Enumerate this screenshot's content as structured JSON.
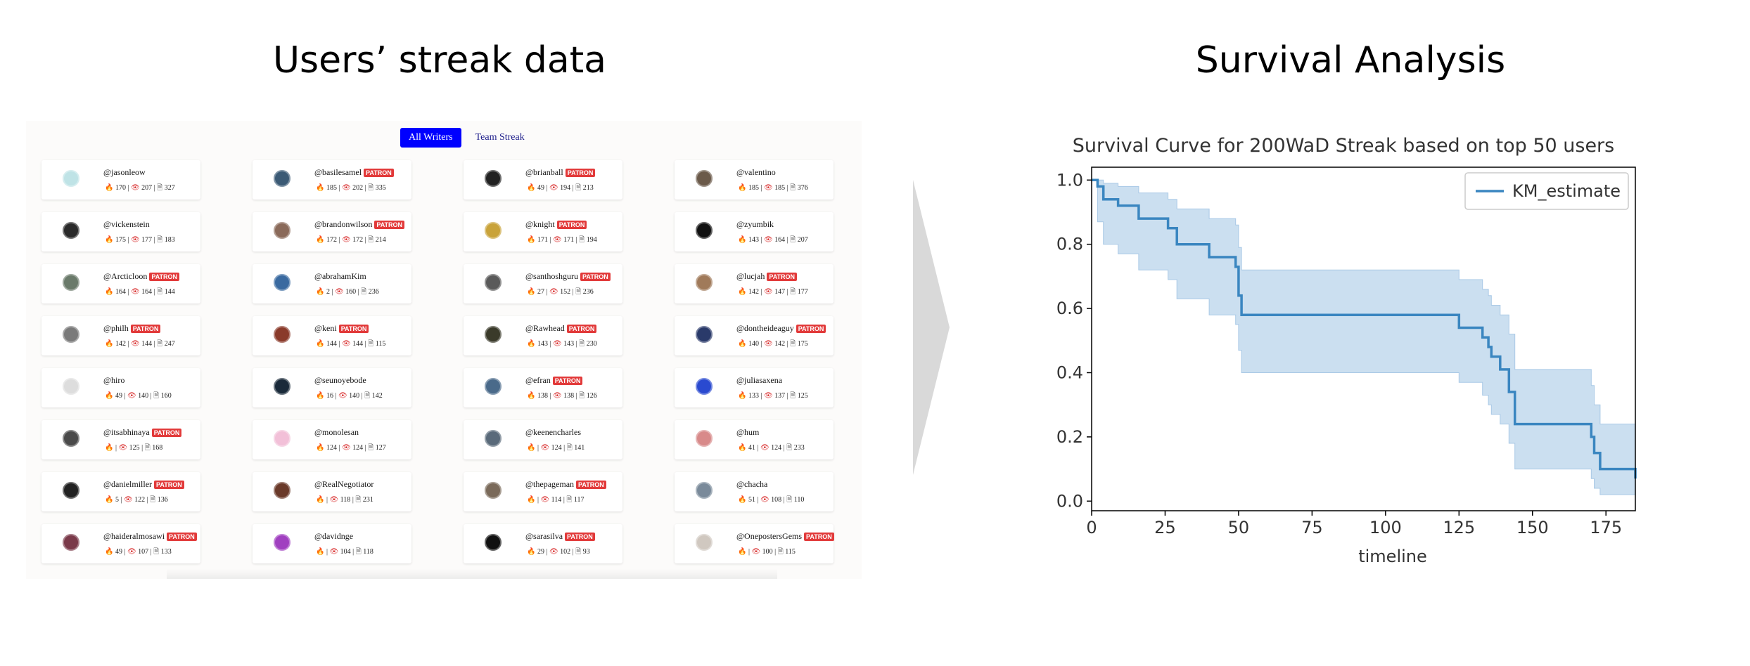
{
  "headings": {
    "left": "Users’ streak data",
    "right": "Survival Analysis"
  },
  "tabs": [
    {
      "label": "All Writers",
      "active": true
    },
    {
      "label": "Team Streak",
      "active": false
    }
  ],
  "users": [
    {
      "name": "@jasonleow",
      "patron": false,
      "streak": "170",
      "views": "207",
      "posts": "327",
      "avatar": "#bfe3e6"
    },
    {
      "name": "@basilesamel",
      "patron": true,
      "streak": "185",
      "views": "202",
      "posts": "335",
      "avatar": "#3b5a75"
    },
    {
      "name": "@brianball",
      "patron": true,
      "streak": "49",
      "views": "194",
      "posts": "213",
      "avatar": "#222222"
    },
    {
      "name": "@valentino",
      "patron": false,
      "streak": "185",
      "views": "185",
      "posts": "376",
      "avatar": "#6b5a4a"
    },
    {
      "name": "@vickenstein",
      "patron": false,
      "streak": "175",
      "views": "177",
      "posts": "183",
      "avatar": "#2a2a2a"
    },
    {
      "name": "@brandonwilson",
      "patron": true,
      "streak": "172",
      "views": "172",
      "posts": "214",
      "avatar": "#8a6a5a"
    },
    {
      "name": "@knight",
      "patron": true,
      "streak": "171",
      "views": "171",
      "posts": "194",
      "avatar": "#c9a33a"
    },
    {
      "name": "@zyumbik",
      "patron": false,
      "streak": "143",
      "views": "164",
      "posts": "207",
      "avatar": "#111111"
    },
    {
      "name": "@Arcticloon",
      "patron": true,
      "streak": "164",
      "views": "164",
      "posts": "144",
      "avatar": "#6a7a6a"
    },
    {
      "name": "@abrahamKim",
      "patron": false,
      "streak": "2",
      "views": "160",
      "posts": "236",
      "avatar": "#3a6aa0"
    },
    {
      "name": "@santhoshguru",
      "patron": true,
      "streak": "27",
      "views": "152",
      "posts": "236",
      "avatar": "#5a5a5a"
    },
    {
      "name": "@lucjah",
      "patron": true,
      "streak": "142",
      "views": "147",
      "posts": "177",
      "avatar": "#a07a5a"
    },
    {
      "name": "@philh",
      "patron": true,
      "streak": "142",
      "views": "144",
      "posts": "247",
      "avatar": "#7a7a7a"
    },
    {
      "name": "@keni",
      "patron": true,
      "streak": "144",
      "views": "144",
      "posts": "115",
      "avatar": "#8a3a2a"
    },
    {
      "name": "@Rawhead",
      "patron": true,
      "streak": "143",
      "views": "143",
      "posts": "230",
      "avatar": "#3a3a2a"
    },
    {
      "name": "@dontheideaguy",
      "patron": true,
      "streak": "140",
      "views": "142",
      "posts": "175",
      "avatar": "#2a3a6a"
    },
    {
      "name": "@hiro",
      "patron": false,
      "streak": "49",
      "views": "140",
      "posts": "160",
      "avatar": "#dddddd"
    },
    {
      "name": "@seunoyebode",
      "patron": false,
      "streak": "16",
      "views": "140",
      "posts": "142",
      "avatar": "#1a2a3a"
    },
    {
      "name": "@efran",
      "patron": true,
      "streak": "138",
      "views": "138",
      "posts": "126",
      "avatar": "#4a6a8a"
    },
    {
      "name": "@juliasaxena",
      "patron": false,
      "streak": "133",
      "views": "137",
      "posts": "125",
      "avatar": "#2a4ad0"
    },
    {
      "name": "@itsabhinaya",
      "patron": true,
      "streak": "",
      "views": "125",
      "posts": "168",
      "avatar": "#4a4a4a"
    },
    {
      "name": "@monolesan",
      "patron": false,
      "streak": "124",
      "views": "124",
      "posts": "127",
      "avatar": "#f2c0d8"
    },
    {
      "name": "@keenencharles",
      "patron": false,
      "streak": "",
      "views": "124",
      "posts": "141",
      "avatar": "#5a6a7a"
    },
    {
      "name": "@hum",
      "patron": false,
      "streak": "41",
      "views": "124",
      "posts": "233",
      "avatar": "#d88a8a"
    },
    {
      "name": "@danielmiller",
      "patron": true,
      "streak": "5",
      "views": "122",
      "posts": "136",
      "avatar": "#222222"
    },
    {
      "name": "@RealNegotiator",
      "patron": false,
      "streak": "",
      "views": "118",
      "posts": "231",
      "avatar": "#6a3a2a"
    },
    {
      "name": "@thepageman",
      "patron": true,
      "streak": "",
      "views": "114",
      "posts": "117",
      "avatar": "#7a6a5a"
    },
    {
      "name": "@chacha",
      "patron": false,
      "streak": "51",
      "views": "108",
      "posts": "110",
      "avatar": "#7a8a9a"
    },
    {
      "name": "@haideralmosawi",
      "patron": true,
      "streak": "49",
      "views": "107",
      "posts": "133",
      "avatar": "#7a3a4a"
    },
    {
      "name": "@davidnge",
      "patron": false,
      "streak": "",
      "views": "104",
      "posts": "118",
      "avatar": "#a040c0"
    },
    {
      "name": "@sarasilva",
      "patron": true,
      "streak": "29",
      "views": "102",
      "posts": "93",
      "avatar": "#111111"
    },
    {
      "name": "@OnepostersGems",
      "patron": true,
      "streak": "",
      "views": "100",
      "posts": "115",
      "avatar": "#d0c8c0"
    }
  ],
  "patron_label": "PATRON",
  "colors": {
    "curve": "#3a86c0",
    "band": "#a9c9e6",
    "active_tab": "#0000ff",
    "patron_badge": "#e23a3a"
  },
  "chart_data": {
    "type": "line",
    "title": "Survival Curve for 200WaD Streak based on top 50 users",
    "xlabel": "timeline",
    "ylabel": "",
    "xlim": [
      0,
      185
    ],
    "ylim": [
      -0.03,
      1.04
    ],
    "xticks": [
      0,
      25,
      50,
      75,
      100,
      125,
      150,
      175
    ],
    "yticks": [
      0.0,
      0.2,
      0.4,
      0.6,
      0.8,
      1.0
    ],
    "legend": {
      "position": "top-right",
      "entries": [
        "KM_estimate"
      ]
    },
    "series": [
      {
        "name": "KM_estimate",
        "step": true,
        "x": [
          0,
          2,
          4,
          9,
          16,
          26,
          29,
          40,
          49,
          50,
          51,
          82,
          125,
          133,
          135,
          136,
          139,
          142,
          144,
          162,
          170,
          171,
          173,
          185
        ],
        "y": [
          1.0,
          0.98,
          0.94,
          0.92,
          0.88,
          0.85,
          0.8,
          0.76,
          0.73,
          0.64,
          0.58,
          0.58,
          0.54,
          0.51,
          0.48,
          0.45,
          0.41,
          0.34,
          0.24,
          0.24,
          0.2,
          0.15,
          0.1,
          0.07
        ],
        "ci_upper": [
          1.0,
          1.0,
          0.99,
          0.98,
          0.96,
          0.94,
          0.91,
          0.88,
          0.86,
          0.79,
          0.72,
          0.72,
          0.69,
          0.66,
          0.64,
          0.61,
          0.58,
          0.52,
          0.41,
          0.41,
          0.36,
          0.3,
          0.24,
          0.19
        ],
        "ci_lower": [
          1.0,
          0.87,
          0.8,
          0.77,
          0.72,
          0.69,
          0.63,
          0.58,
          0.55,
          0.47,
          0.4,
          0.4,
          0.37,
          0.33,
          0.3,
          0.27,
          0.24,
          0.18,
          0.1,
          0.1,
          0.07,
          0.04,
          0.02,
          0.0
        ]
      }
    ]
  }
}
